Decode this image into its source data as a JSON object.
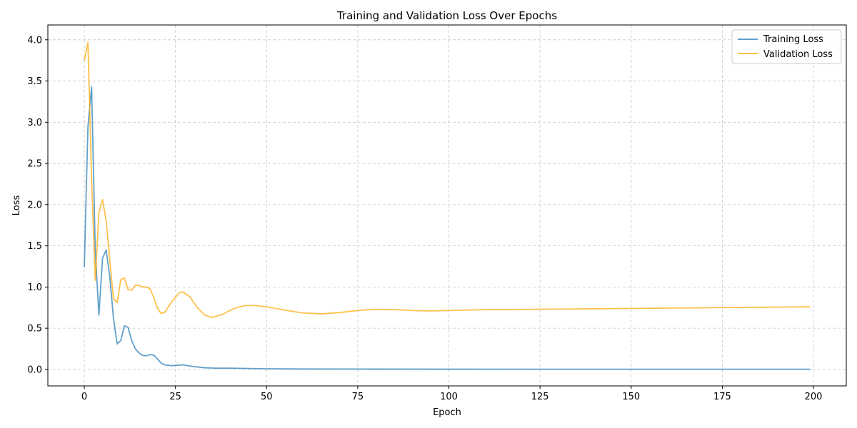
{
  "chart_data": {
    "type": "line",
    "title": "Training and Validation Loss Over Epochs",
    "xlabel": "Epoch",
    "ylabel": "Loss",
    "xlim": [
      -10,
      209
    ],
    "ylim": [
      -0.2,
      4.18
    ],
    "x_ticks": [
      0,
      25,
      50,
      75,
      100,
      125,
      150,
      175,
      200
    ],
    "y_ticks": [
      0.0,
      0.5,
      1.0,
      1.5,
      2.0,
      2.5,
      3.0,
      3.5,
      4.0
    ],
    "x_tick_labels": [
      "0",
      "25",
      "50",
      "75",
      "100",
      "125",
      "150",
      "175",
      "200"
    ],
    "y_tick_labels": [
      "0.0",
      "0.5",
      "1.0",
      "1.5",
      "2.0",
      "2.5",
      "3.0",
      "3.5",
      "4.0"
    ],
    "grid": true,
    "legend_position": "top-right",
    "series": [
      {
        "name": "Training Loss",
        "color": "#1f77b4",
        "points": [
          [
            0,
            1.25
          ],
          [
            1,
            2.95
          ],
          [
            2,
            3.43
          ],
          [
            3,
            1.45
          ],
          [
            4,
            0.66
          ],
          [
            5,
            1.35
          ],
          [
            6,
            1.45
          ],
          [
            7,
            1.12
          ],
          [
            8,
            0.62
          ],
          [
            9,
            0.31
          ],
          [
            10,
            0.35
          ],
          [
            11,
            0.53
          ],
          [
            12,
            0.51
          ],
          [
            13,
            0.35
          ],
          [
            14,
            0.25
          ],
          [
            15,
            0.2
          ],
          [
            16,
            0.17
          ],
          [
            17,
            0.165
          ],
          [
            18,
            0.18
          ],
          [
            19,
            0.175
          ],
          [
            20,
            0.13
          ],
          [
            21,
            0.08
          ],
          [
            22,
            0.055
          ],
          [
            24,
            0.045
          ],
          [
            27,
            0.055
          ],
          [
            30,
            0.035
          ],
          [
            33,
            0.02
          ],
          [
            36,
            0.015
          ],
          [
            40,
            0.015
          ],
          [
            50,
            0.008
          ],
          [
            60,
            0.005
          ],
          [
            80,
            0.004
          ],
          [
            100,
            0.003
          ],
          [
            150,
            0.002
          ],
          [
            199,
            0.002
          ]
        ]
      },
      {
        "name": "Validation Loss",
        "color": "#ffa500",
        "points": [
          [
            0,
            3.75
          ],
          [
            1,
            3.97
          ],
          [
            2,
            2.3
          ],
          [
            3,
            1.08
          ],
          [
            4,
            1.9
          ],
          [
            5,
            2.06
          ],
          [
            6,
            1.8
          ],
          [
            7,
            1.32
          ],
          [
            8,
            0.86
          ],
          [
            9,
            0.81
          ],
          [
            10,
            1.09
          ],
          [
            11,
            1.11
          ],
          [
            12,
            0.97
          ],
          [
            13,
            0.96
          ],
          [
            14,
            1.02
          ],
          [
            15,
            1.02
          ],
          [
            16,
            1.0
          ],
          [
            17,
            1.0
          ],
          [
            18,
            0.98
          ],
          [
            19,
            0.88
          ],
          [
            20,
            0.75
          ],
          [
            21,
            0.68
          ],
          [
            22,
            0.69
          ],
          [
            24,
            0.82
          ],
          [
            26,
            0.93
          ],
          [
            27,
            0.94
          ],
          [
            29,
            0.88
          ],
          [
            31,
            0.75
          ],
          [
            33,
            0.66
          ],
          [
            35,
            0.63
          ],
          [
            38,
            0.67
          ],
          [
            41,
            0.74
          ],
          [
            44,
            0.775
          ],
          [
            47,
            0.775
          ],
          [
            50,
            0.76
          ],
          [
            55,
            0.72
          ],
          [
            60,
            0.685
          ],
          [
            65,
            0.675
          ],
          [
            70,
            0.69
          ],
          [
            75,
            0.715
          ],
          [
            80,
            0.73
          ],
          [
            85,
            0.725
          ],
          [
            90,
            0.715
          ],
          [
            95,
            0.71
          ],
          [
            100,
            0.715
          ],
          [
            110,
            0.725
          ],
          [
            125,
            0.73
          ],
          [
            150,
            0.74
          ],
          [
            175,
            0.75
          ],
          [
            199,
            0.76
          ]
        ]
      }
    ]
  }
}
